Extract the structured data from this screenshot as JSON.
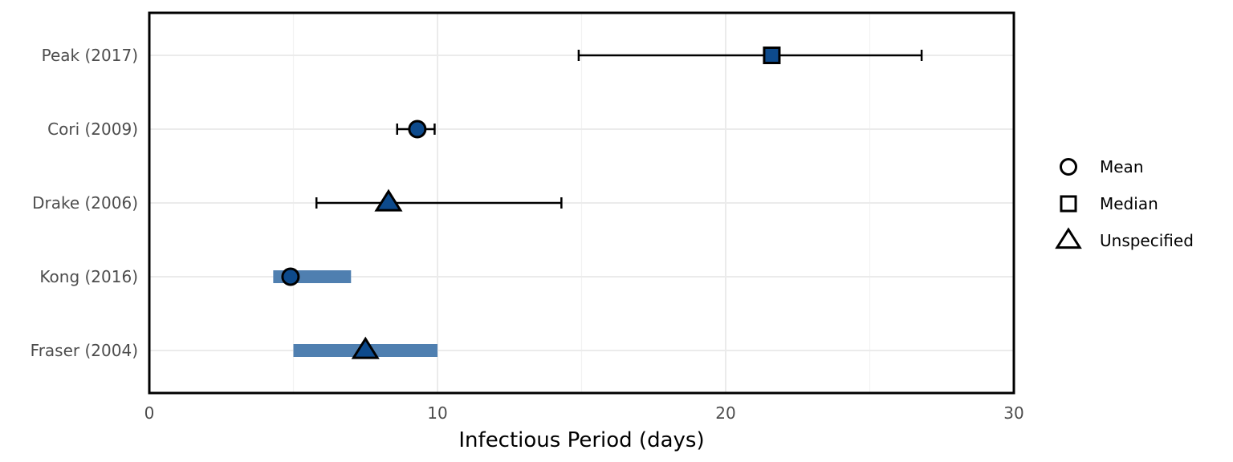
{
  "chart_data": {
    "type": "forest",
    "xlabel": "Infectious Period (days)",
    "ylabel": "",
    "xlim": [
      0,
      30
    ],
    "xticks": [
      0,
      10,
      20,
      30
    ],
    "grid": true,
    "legend_position": "right",
    "colors": {
      "point_fill": "#0d4a8c",
      "range_bar": "#4f7fb0",
      "outline": "#000000",
      "grid": "#ebebeb"
    },
    "legend": [
      {
        "shape": "circle",
        "label": "Mean"
      },
      {
        "shape": "square",
        "label": "Median"
      },
      {
        "shape": "triangle",
        "label": "Unspecified"
      }
    ],
    "studies": [
      {
        "label": "Peak (2017)",
        "estimate": 21.6,
        "estimate_type": "Median",
        "interval": "errorbar",
        "low": 14.9,
        "high": 26.8
      },
      {
        "label": "Cori (2009)",
        "estimate": 9.3,
        "estimate_type": "Mean",
        "interval": "errorbar",
        "low": 8.6,
        "high": 9.9
      },
      {
        "label": "Drake (2006)",
        "estimate": 8.3,
        "estimate_type": "Unspecified",
        "interval": "errorbar",
        "low": 5.8,
        "high": 14.3
      },
      {
        "label": "Kong (2016)",
        "estimate": 4.9,
        "estimate_type": "Mean",
        "interval": "range",
        "low": 4.3,
        "high": 7.0
      },
      {
        "label": "Fraser (2004)",
        "estimate": 7.5,
        "estimate_type": "Unspecified",
        "interval": "range",
        "low": 5.0,
        "high": 10.0
      }
    ]
  }
}
